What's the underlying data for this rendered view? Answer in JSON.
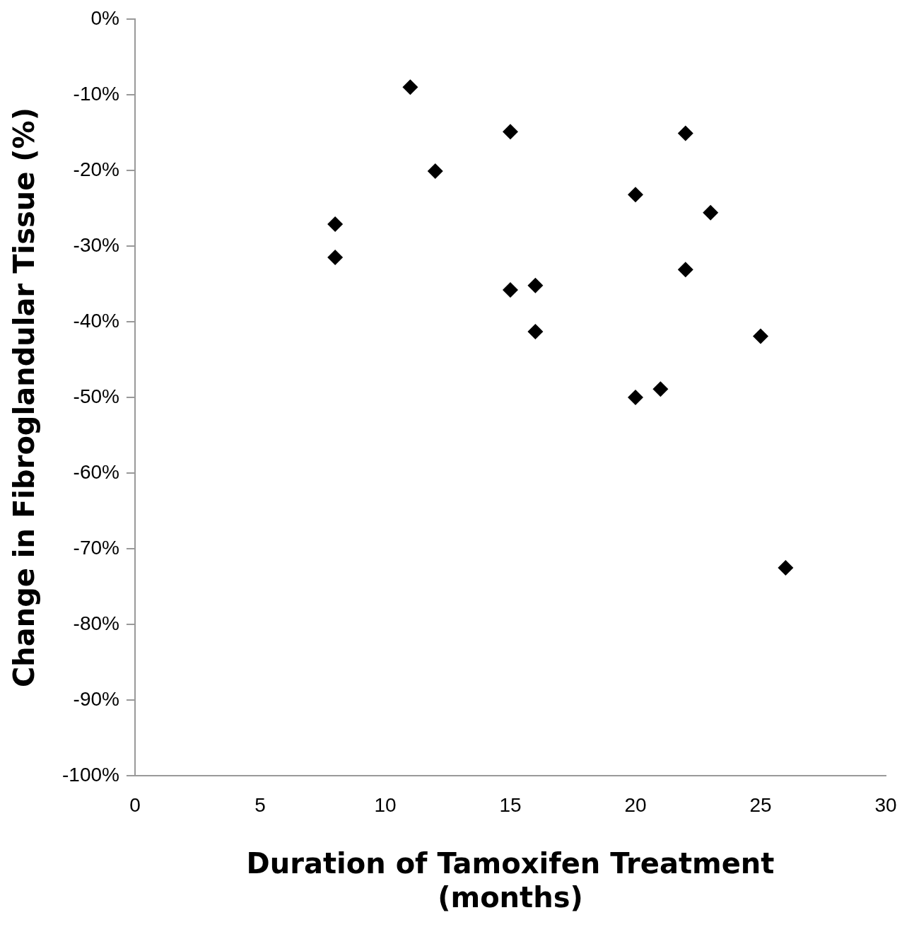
{
  "chart_data": {
    "type": "scatter",
    "xlabel": "Duration of Tamoxifen Treatment\n(months)",
    "ylabel": "Change in Fibroglandular Tissue (%)",
    "x": [
      11,
      15,
      22,
      12,
      20,
      23,
      8,
      8,
      22,
      16,
      15,
      16,
      25,
      21,
      20,
      26
    ],
    "series": [
      {
        "color": "#000000",
        "values": [
          -9,
          -14.9,
          -15.1,
          -20.1,
          -23.2,
          -25.6,
          -27.1,
          -31.5,
          -33.1,
          -35.2,
          -35.8,
          -41.3,
          -41.9,
          -48.9,
          -50,
          -72.5
        ]
      }
    ],
    "xlim": [
      0,
      30
    ],
    "xticks": [
      0,
      5,
      10,
      15,
      20,
      25,
      30
    ],
    "ylim": [
      -100,
      0
    ],
    "yticks": [
      {
        "value": -100,
        "label": "-100%"
      },
      {
        "value": -90,
        "label": "-90%"
      },
      {
        "value": -80,
        "label": "-80%"
      },
      {
        "value": -70,
        "label": "-70%"
      },
      {
        "value": -60,
        "label": "-60%"
      },
      {
        "value": -50,
        "label": "-50%"
      },
      {
        "value": -40,
        "label": "-40%"
      },
      {
        "value": -30,
        "label": "-30%"
      },
      {
        "value": -20,
        "label": "-20%"
      },
      {
        "value": -10,
        "label": "-10%"
      },
      {
        "value": 0,
        "label": "0%"
      }
    ],
    "grid": false,
    "legend": false,
    "marker": "diamond"
  }
}
